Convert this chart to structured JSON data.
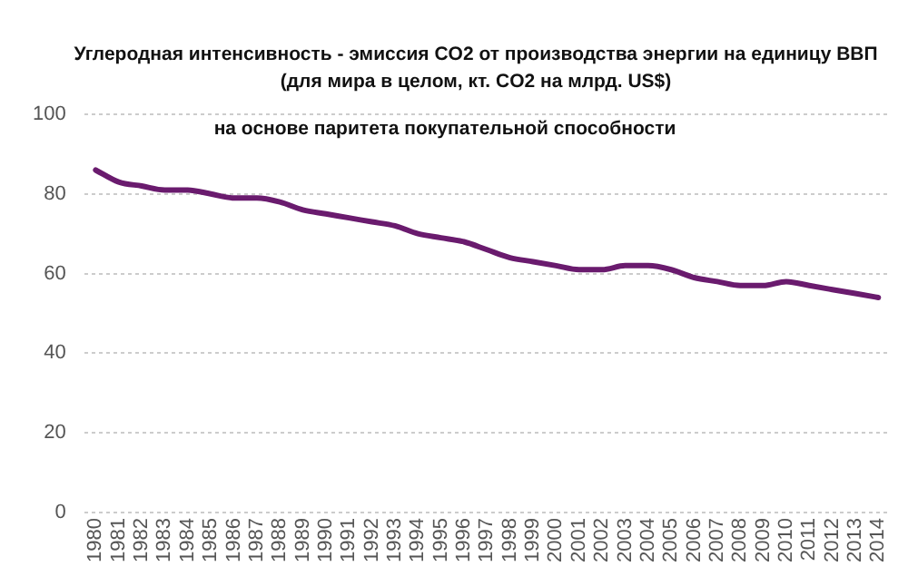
{
  "chart_data": {
    "type": "line",
    "title": "Углеродная интенсивность - эмиссия CO2 от производства энергии на единицу ВВП\n(для мира в целом, кт. CO2 на млрд. US$)",
    "subtitle": "на основе паритета покупательной способности",
    "categories": [
      "1980",
      "1981",
      "1982",
      "1983",
      "1984",
      "1985",
      "1986",
      "1987",
      "1988",
      "1989",
      "1990",
      "1991",
      "1992",
      "1993",
      "1994",
      "1995",
      "1996",
      "1997",
      "1998",
      "1999",
      "2000",
      "2001",
      "2002",
      "2003",
      "2004",
      "2005",
      "2006",
      "2007",
      "2008",
      "2009",
      "2010",
      "2011",
      "2012",
      "2013",
      "2014"
    ],
    "series": [
      {
        "color": "#6a1b6e",
        "values": [
          86,
          83,
          82,
          81,
          81,
          80,
          79,
          79,
          78,
          76,
          75,
          74,
          73,
          72,
          70,
          69,
          68,
          66,
          64,
          63,
          62,
          61,
          61,
          62,
          62,
          61,
          59,
          58,
          57,
          57,
          58,
          57,
          56,
          55,
          54
        ]
      }
    ],
    "ylim": [
      0,
      100
    ],
    "yticks": [
      0,
      20,
      40,
      60,
      80,
      100
    ],
    "grid": "y",
    "legend": false,
    "marker": "none",
    "line_style": "solid"
  }
}
